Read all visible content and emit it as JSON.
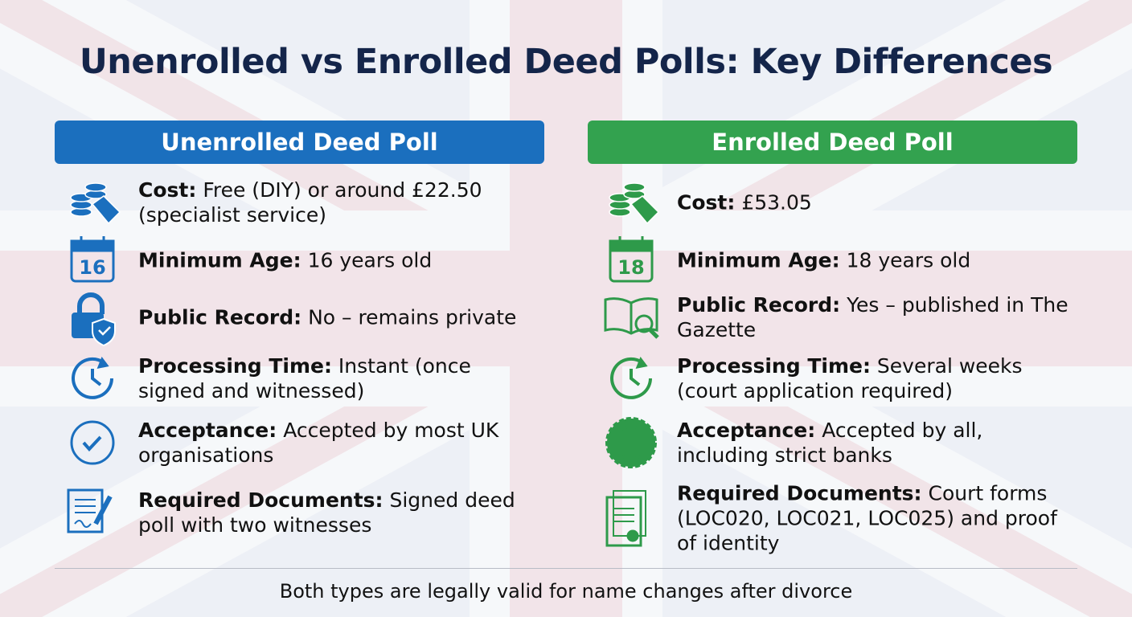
{
  "title": "Unenrolled vs Enrolled Deed Polls: Key Differences",
  "columns": [
    {
      "header": "Unenrolled Deed Poll",
      "rows": [
        {
          "label": "Cost:",
          "text": "Free (DIY) or around £22.50 (specialist service)"
        },
        {
          "label": "Minimum Age:",
          "text": "16 years old",
          "icon_label": "16"
        },
        {
          "label": "Public Record:",
          "text": "No – remains private"
        },
        {
          "label": "Processing Time:",
          "text": "Instant (once signed and witnessed)"
        },
        {
          "label": "Acceptance:",
          "text": "Accepted by most UK organisations"
        },
        {
          "label": "Required Documents:",
          "text": "Signed deed poll with two witnesses"
        }
      ]
    },
    {
      "header": "Enrolled Deed Poll",
      "rows": [
        {
          "label": "Cost:",
          "text": "£53.05"
        },
        {
          "label": "Minimum Age:",
          "text": "18 years old",
          "icon_label": "18"
        },
        {
          "label": "Public Record:",
          "text": "Yes – published in The Gazette"
        },
        {
          "label": "Processing Time:",
          "text": "Several weeks (court application required)"
        },
        {
          "label": "Acceptance:",
          "text": "Accepted by all, including strict banks"
        },
        {
          "label": "Required Documents:",
          "text": "Court forms (LOC020, LOC021, LOC025) and proof of identity"
        }
      ]
    }
  ],
  "footer": "Both types are legally valid for name changes after divorce"
}
